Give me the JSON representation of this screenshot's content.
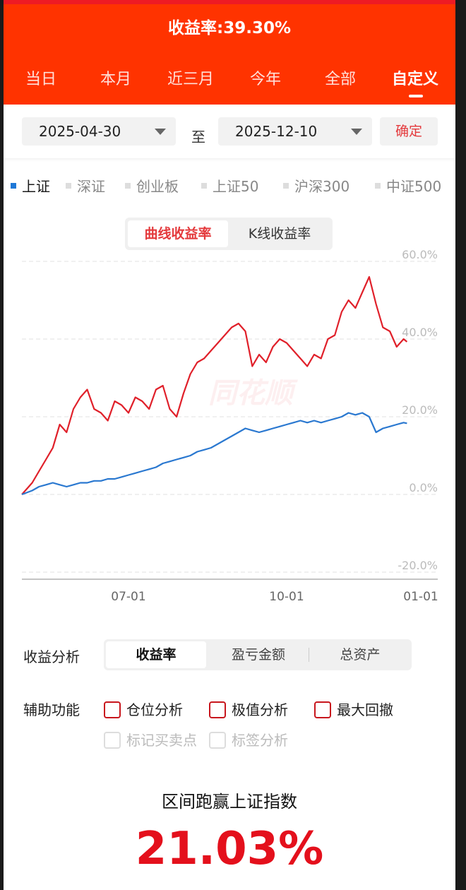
{
  "header": {
    "yield_title": "收益率:39.30%",
    "tabs": [
      "当日",
      "本月",
      "近三月",
      "今年",
      "全部",
      "自定义"
    ],
    "active_tab": "自定义"
  },
  "date_range": {
    "start": "2025-04-30",
    "separator": "至",
    "end": "2025-12-10",
    "confirm_label": "确定"
  },
  "benchmarks": [
    "上证",
    "深证",
    "创业板",
    "上证50",
    "沪深300",
    "中证500"
  ],
  "active_benchmark": "上证",
  "chart_mode": {
    "on": "曲线收益率",
    "off": "K线收益率"
  },
  "watermark": "同花顺",
  "chart_data": {
    "type": "line",
    "y_ticks": [
      "60.0%",
      "40.0%",
      "20.0%",
      "0.0%",
      "-20.0%"
    ],
    "x_ticks": [
      "07-01",
      "10-01",
      "01-01"
    ],
    "ylim": [
      -20,
      60
    ],
    "y_unit": "%",
    "colors": {
      "portfolio": "#e0202a",
      "benchmark": "#2a78d0"
    },
    "series": [
      {
        "name": "",
        "color": "#e0202a",
        "x": [
          "2025-04-30",
          "2025-05-06",
          "2025-05-10",
          "2025-05-14",
          "2025-05-18",
          "2025-05-22",
          "2025-05-26",
          "2025-05-30",
          "2025-06-03",
          "2025-06-07",
          "2025-06-11",
          "2025-06-15",
          "2025-06-19",
          "2025-06-23",
          "2025-06-27",
          "2025-07-01",
          "2025-07-05",
          "2025-07-09",
          "2025-07-13",
          "2025-07-17",
          "2025-07-21",
          "2025-07-25",
          "2025-07-29",
          "2025-08-02",
          "2025-08-06",
          "2025-08-10",
          "2025-08-14",
          "2025-08-18",
          "2025-08-22",
          "2025-08-26",
          "2025-08-30",
          "2025-09-03",
          "2025-09-07",
          "2025-09-11",
          "2025-09-15",
          "2025-09-19",
          "2025-09-23",
          "2025-09-27",
          "2025-10-01",
          "2025-10-05",
          "2025-10-09",
          "2025-10-13",
          "2025-10-17",
          "2025-10-21",
          "2025-10-25",
          "2025-10-29",
          "2025-11-02",
          "2025-11-06",
          "2025-11-10",
          "2025-11-14",
          "2025-11-18",
          "2025-11-22",
          "2025-11-26",
          "2025-11-30",
          "2025-12-04",
          "2025-12-08",
          "2025-12-10"
        ],
        "values": [
          0,
          3,
          6,
          9,
          12,
          18,
          16,
          22,
          25,
          27,
          22,
          21,
          19,
          24,
          23,
          21,
          25,
          24,
          22,
          27,
          28,
          22,
          20,
          26,
          31,
          34,
          35,
          37,
          39,
          41,
          43,
          44,
          42,
          33,
          36,
          34,
          38,
          40,
          39,
          37,
          35,
          33,
          36,
          35,
          40,
          41,
          47,
          50,
          48,
          52,
          56,
          49,
          43,
          42,
          38,
          40,
          39.3
        ]
      },
      {
        "name": "",
        "color": "#2a78d0",
        "x": [
          "2025-04-30",
          "2025-05-06",
          "2025-05-10",
          "2025-05-14",
          "2025-05-18",
          "2025-05-22",
          "2025-05-26",
          "2025-05-30",
          "2025-06-03",
          "2025-06-07",
          "2025-06-11",
          "2025-06-15",
          "2025-06-19",
          "2025-06-23",
          "2025-06-27",
          "2025-07-01",
          "2025-07-05",
          "2025-07-09",
          "2025-07-13",
          "2025-07-17",
          "2025-07-21",
          "2025-07-25",
          "2025-07-29",
          "2025-08-02",
          "2025-08-06",
          "2025-08-10",
          "2025-08-14",
          "2025-08-18",
          "2025-08-22",
          "2025-08-26",
          "2025-08-30",
          "2025-09-03",
          "2025-09-07",
          "2025-09-11",
          "2025-09-15",
          "2025-09-19",
          "2025-09-23",
          "2025-09-27",
          "2025-10-01",
          "2025-10-05",
          "2025-10-09",
          "2025-10-13",
          "2025-10-17",
          "2025-10-21",
          "2025-10-25",
          "2025-10-29",
          "2025-11-02",
          "2025-11-06",
          "2025-11-10",
          "2025-11-14",
          "2025-11-18",
          "2025-11-22",
          "2025-11-26",
          "2025-11-30",
          "2025-12-04",
          "2025-12-08",
          "2025-12-10"
        ],
        "values": [
          0,
          1,
          2,
          2.5,
          3,
          2.5,
          2,
          2.5,
          3,
          3,
          3.5,
          3.5,
          4,
          4,
          4.5,
          5,
          5.5,
          6,
          6.5,
          7,
          8,
          8.5,
          9,
          9.5,
          10,
          11,
          11.5,
          12,
          13,
          14,
          15,
          16,
          17,
          16.5,
          16,
          16.5,
          17,
          17.5,
          18,
          18.5,
          19,
          18.5,
          19,
          18.5,
          19,
          19.5,
          20,
          21,
          20.5,
          21,
          20,
          16,
          17,
          17.5,
          18,
          18.5,
          18.3
        ]
      }
    ]
  },
  "analysis": {
    "label": "收益分析",
    "tabs": [
      "收益率",
      "盈亏金额",
      "总资产"
    ]
  },
  "aux": {
    "label": "辅助功能",
    "options": [
      "仓位分析",
      "极值分析",
      "最大回撤"
    ],
    "disabled_options": [
      "标记买卖点",
      "标签分析"
    ]
  },
  "summary": {
    "label": "区间跑赢上证指数",
    "value": "21.03%"
  }
}
